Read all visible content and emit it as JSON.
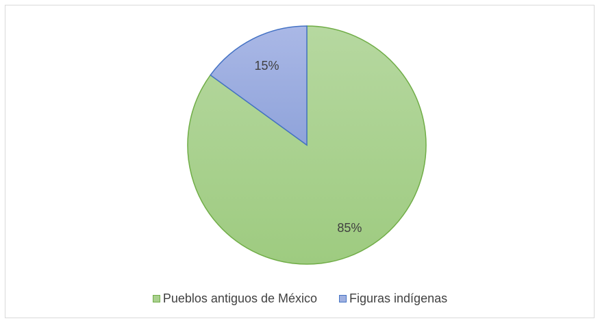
{
  "chart_data": {
    "type": "pie",
    "title": "",
    "slices": [
      {
        "label": "Pueblos antiguos de México",
        "value": 85,
        "value_label": "85%",
        "fill": "#a9d08e",
        "stroke": "#70ad47"
      },
      {
        "label": "Figuras indígenas",
        "value": 15,
        "value_label": "15%",
        "fill": "#9fb0e0",
        "stroke": "#4472c4"
      }
    ],
    "legend_position": "bottom"
  }
}
